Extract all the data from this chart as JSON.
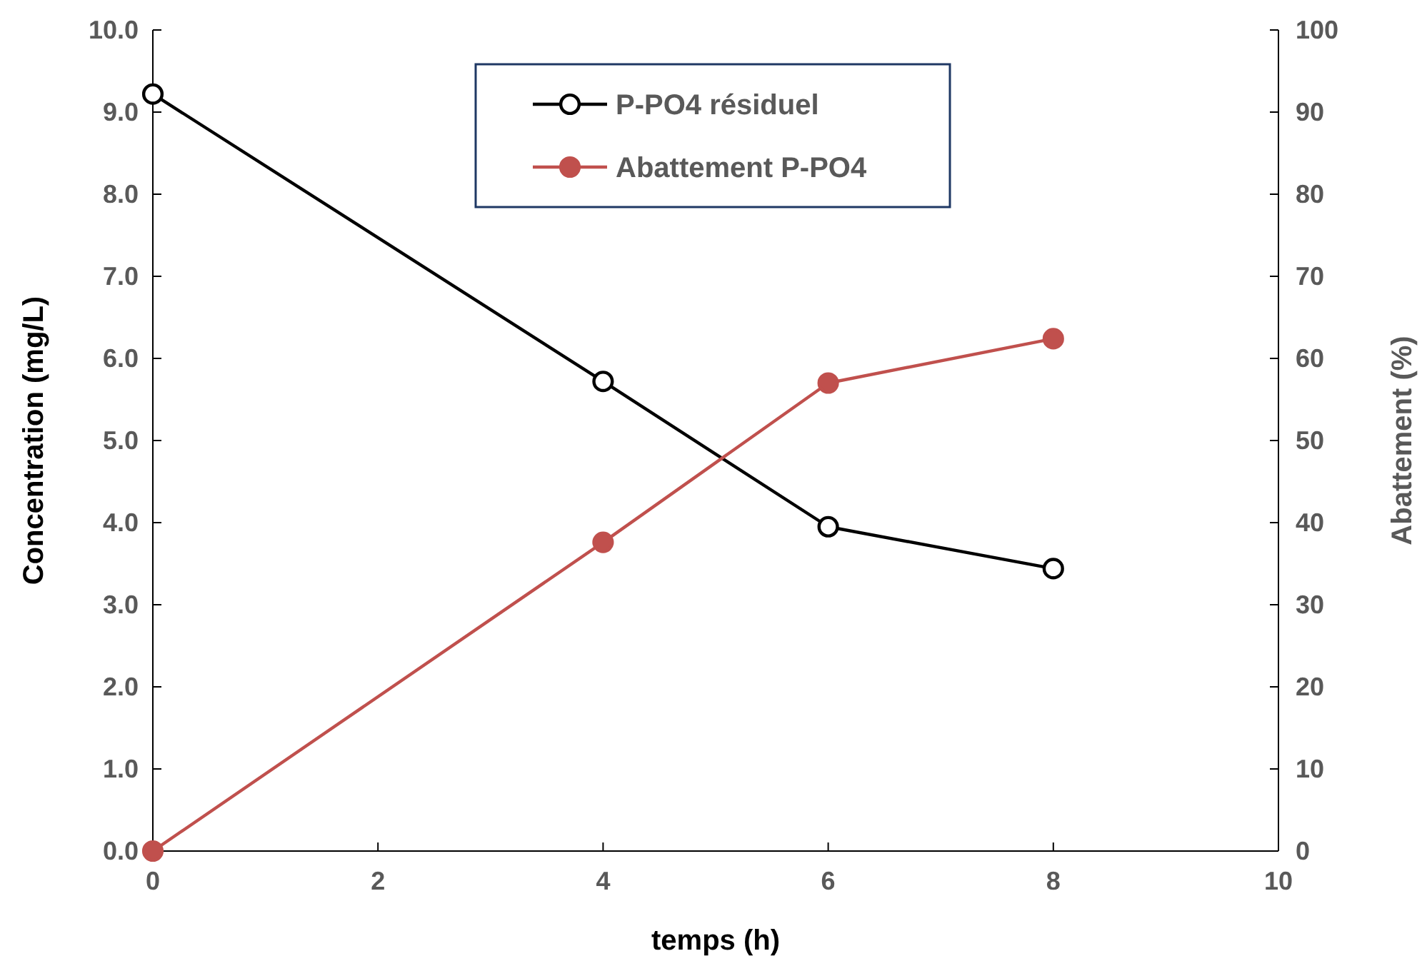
{
  "chart_data": {
    "type": "line",
    "xlabel": "temps (h)",
    "ylabel": "Concentration (mg/L)",
    "y2label": "Abattement (%)",
    "x": [
      0,
      4,
      6,
      8
    ],
    "series": [
      {
        "name": "P-PO4 résiduel",
        "color": "#000000",
        "values": [
          9.22,
          5.72,
          3.95,
          3.44
        ]
      },
      {
        "name": "Abattement P-PO4",
        "color": "#c0504d",
        "values": [
          0,
          37.6,
          57.0,
          62.4
        ],
        "axis": "y2"
      }
    ],
    "xlim": [
      0,
      10
    ],
    "xticks": [
      0,
      2,
      4,
      6,
      8,
      10
    ],
    "ylim": [
      0,
      10
    ],
    "yticks": [
      {
        "value": 0,
        "label": "0.0"
      },
      {
        "value": 1,
        "label": "1.0"
      },
      {
        "value": 2,
        "label": "2.0"
      },
      {
        "value": 3,
        "label": "3.0"
      },
      {
        "value": 4,
        "label": "4.0"
      },
      {
        "value": 5,
        "label": "5.0"
      },
      {
        "value": 6,
        "label": "6.0"
      },
      {
        "value": 7,
        "label": "7.0"
      },
      {
        "value": 8,
        "label": "8.0"
      },
      {
        "value": 9,
        "label": "9.0"
      },
      {
        "value": 10,
        "label": "10.0"
      }
    ],
    "y2lim": [
      0,
      100
    ],
    "y2ticks": [
      0,
      10,
      20,
      30,
      40,
      50,
      60,
      70,
      80,
      90,
      100
    ],
    "legend": "top",
    "marker": "circle",
    "line_style": "solid",
    "grid": false
  }
}
